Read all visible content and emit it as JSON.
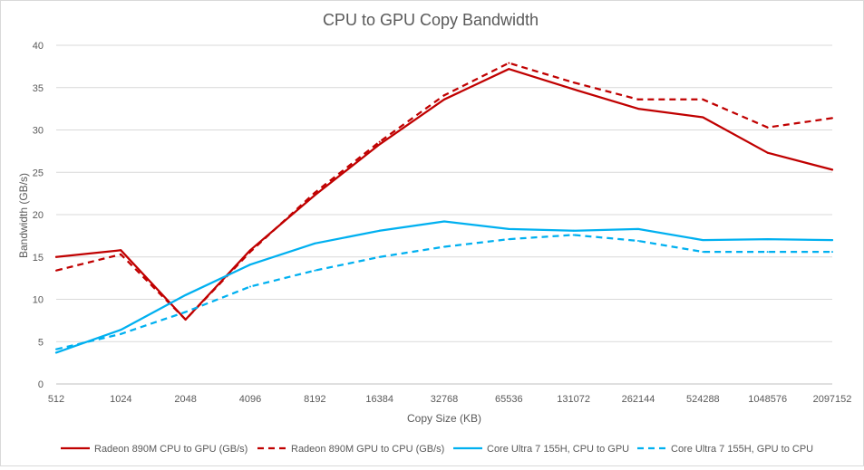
{
  "chart_data": {
    "type": "line",
    "title": "CPU to GPU Copy Bandwidth",
    "xlabel": "Copy Size (KB)",
    "ylabel": "Bandwidth (GB/s)",
    "ylim": [
      0,
      40
    ],
    "y_ticks": [
      "0",
      "5",
      "10",
      "15",
      "20",
      "25",
      "30",
      "35",
      "40"
    ],
    "grid": "horizontal",
    "legend_position": "bottom",
    "categories": [
      "512",
      "1024",
      "2048",
      "4096",
      "8192",
      "16384",
      "32768",
      "65536",
      "131072",
      "262144",
      "524288",
      "1048576",
      "2097152"
    ],
    "series": [
      {
        "name": "Radeon 890M CPU to GPU (GB/s)",
        "color": "#c00000",
        "dash": "solid",
        "values": [
          15.0,
          15.8,
          7.6,
          15.8,
          22.3,
          28.3,
          33.6,
          37.2,
          34.8,
          32.5,
          31.5,
          27.3,
          25.3
        ]
      },
      {
        "name": "Radeon 890M GPU to CPU (GB/s)",
        "color": "#c00000",
        "dash": "dashed",
        "values": [
          13.4,
          15.3,
          7.6,
          15.6,
          22.6,
          28.6,
          34.1,
          37.9,
          35.6,
          33.6,
          33.6,
          30.3,
          31.4
        ]
      },
      {
        "name": "Core Ultra 7 155H, CPU to GPU",
        "color": "#00b0f0",
        "dash": "solid",
        "values": [
          3.7,
          6.4,
          10.5,
          14.1,
          16.6,
          18.1,
          19.2,
          18.3,
          18.1,
          18.3,
          17.0,
          17.1,
          17.0
        ]
      },
      {
        "name": "Core Ultra 7 155H, GPU to CPU",
        "color": "#00b0f0",
        "dash": "dashed",
        "values": [
          4.1,
          5.9,
          8.5,
          11.5,
          13.4,
          15.0,
          16.2,
          17.1,
          17.6,
          16.9,
          15.6,
          15.6,
          15.6
        ]
      }
    ]
  }
}
